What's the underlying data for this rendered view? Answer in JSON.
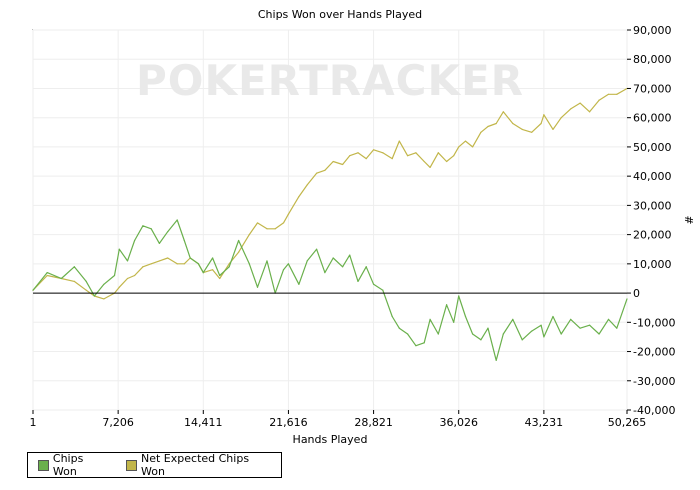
{
  "watermark": "POKERTRACKER",
  "chart_data": {
    "type": "line",
    "title": "Chips Won over Hands Played",
    "xlabel": "Hands Played",
    "ylabel": "#",
    "xlim": [
      1,
      50265
    ],
    "ylim": [
      -40000,
      90000
    ],
    "x_ticks": [
      1,
      7206,
      14411,
      21616,
      28821,
      36026,
      43231,
      50265
    ],
    "x_tick_labels": [
      "1",
      "7,206",
      "14,411",
      "21,616",
      "28,821",
      "36,026",
      "43,231",
      "50,265"
    ],
    "y_ticks": [
      -40000,
      -30000,
      -20000,
      -10000,
      0,
      10000,
      20000,
      30000,
      40000,
      50000,
      60000,
      70000,
      80000,
      90000
    ],
    "y_tick_labels": [
      "-40,000",
      "-30,000",
      "-20,000",
      "-10,000",
      "0",
      "10,000",
      "20,000",
      "30,000",
      "40,000",
      "50,000",
      "60,000",
      "70,000",
      "80,000",
      "90,000"
    ],
    "grid": true,
    "legend_position": "bottom-left",
    "series": [
      {
        "name": "Chips Won",
        "color": "#6ab04c",
        "x": [
          1,
          1200,
          2400,
          3500,
          4500,
          5200,
          6000,
          6900,
          7300,
          8000,
          8600,
          9300,
          10000,
          10700,
          11400,
          12200,
          12800,
          13300,
          14000,
          14411,
          15200,
          15800,
          16600,
          17400,
          18300,
          19000,
          19800,
          20500,
          21200,
          21616,
          22500,
          23200,
          24000,
          24700,
          25400,
          26200,
          26800,
          27500,
          28200,
          28821,
          29600,
          30400,
          31000,
          31700,
          32400,
          33100,
          33600,
          34300,
          35000,
          35600,
          36026,
          36600,
          37200,
          37900,
          38500,
          39200,
          39800,
          40600,
          41400,
          42200,
          43000,
          43231,
          44000,
          44700,
          45500,
          46300,
          47100,
          47900,
          48700,
          49400,
          50265
        ],
        "y": [
          1000,
          7000,
          5000,
          9000,
          4000,
          -1000,
          3000,
          6000,
          15000,
          11000,
          18000,
          23000,
          22000,
          17000,
          21000,
          25000,
          18000,
          12000,
          10000,
          7000,
          12000,
          6000,
          9000,
          18000,
          10000,
          2000,
          11000,
          0,
          8000,
          10000,
          3000,
          11000,
          15000,
          7000,
          12000,
          9000,
          13000,
          4000,
          9000,
          3000,
          1000,
          -8000,
          -12000,
          -14000,
          -18000,
          -17000,
          -9000,
          -14000,
          -4000,
          -10000,
          -1000,
          -8000,
          -14000,
          -16000,
          -12000,
          -23000,
          -14000,
          -9000,
          -16000,
          -13000,
          -11000,
          -15000,
          -8000,
          -14000,
          -9000,
          -12000,
          -11000,
          -14000,
          -9000,
          -12000,
          -2000
        ]
      },
      {
        "name": "Net Expected Chips Won",
        "color": "#c2b64a",
        "x": [
          1,
          1200,
          2400,
          3500,
          4500,
          5200,
          6000,
          6900,
          7300,
          8000,
          8600,
          9300,
          10000,
          10700,
          11400,
          12200,
          12800,
          13300,
          14000,
          14411,
          15200,
          15800,
          16600,
          17400,
          18300,
          19000,
          19800,
          20500,
          21200,
          21616,
          22500,
          23200,
          24000,
          24700,
          25400,
          26200,
          26800,
          27500,
          28200,
          28821,
          29600,
          30400,
          31000,
          31700,
          32400,
          33100,
          33600,
          34300,
          35000,
          35600,
          36026,
          36600,
          37200,
          37900,
          38500,
          39200,
          39800,
          40600,
          41400,
          42200,
          43000,
          43231,
          44000,
          44700,
          45500,
          46300,
          47100,
          47900,
          48700,
          49400,
          50265
        ],
        "y": [
          1000,
          6000,
          5000,
          4000,
          1000,
          -1000,
          -2000,
          0,
          2000,
          5000,
          6000,
          9000,
          10000,
          11000,
          12000,
          10000,
          10000,
          12000,
          10000,
          7000,
          8000,
          5000,
          10000,
          14000,
          20000,
          24000,
          22000,
          22000,
          24000,
          27000,
          33000,
          37000,
          41000,
          42000,
          45000,
          44000,
          47000,
          48000,
          46000,
          49000,
          48000,
          46000,
          52000,
          47000,
          48000,
          45000,
          43000,
          48000,
          45000,
          47000,
          50000,
          52000,
          50000,
          55000,
          57000,
          58000,
          62000,
          58000,
          56000,
          55000,
          58000,
          61000,
          56000,
          60000,
          63000,
          65000,
          62000,
          66000,
          68000,
          68000,
          70000
        ]
      }
    ]
  }
}
